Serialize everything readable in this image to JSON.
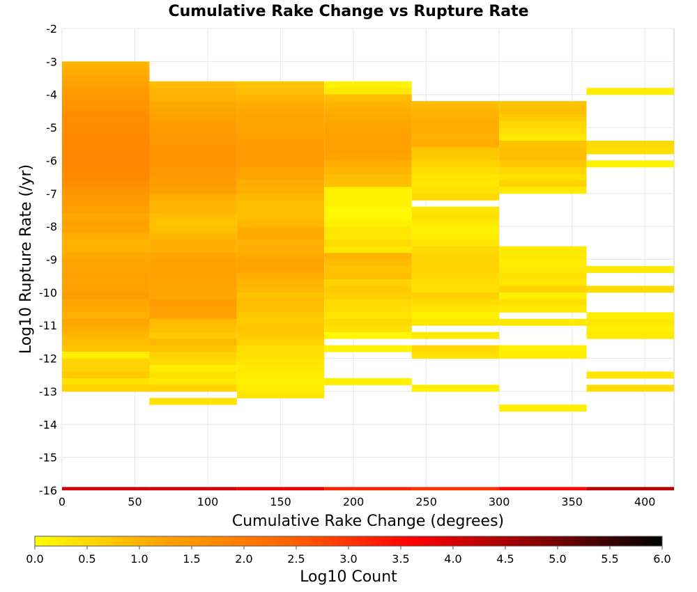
{
  "chart_data": {
    "type": "heatmap",
    "title": "Cumulative Rake Change vs Rupture Rate",
    "xlabel": "Cumulative Rake Change (degrees)",
    "ylabel": "Log10 Rupture Rate (/yr)",
    "xlim": [
      0,
      420
    ],
    "ylim": [
      -16,
      -2
    ],
    "x_ticks": [
      "0",
      "50",
      "100",
      "150",
      "200",
      "250",
      "300",
      "350",
      "400"
    ],
    "y_ticks": [
      "-2",
      "-3",
      "-4",
      "-5",
      "-6",
      "-7",
      "-8",
      "-9",
      "-10",
      "-11",
      "-12",
      "-13",
      "-14",
      "-15",
      "-16"
    ],
    "x_bin_edges": [
      0,
      60,
      120,
      180,
      240,
      300,
      360,
      420
    ],
    "y_bin_width": 0.2,
    "grid": true,
    "colorbar": {
      "label": "Log10 Count",
      "min": 0.0,
      "max": 6.0,
      "ticks": [
        "0.0",
        "0.5",
        "1.0",
        "1.5",
        "2.0",
        "2.5",
        "3.0",
        "3.5",
        "4.0",
        "4.5",
        "5.0",
        "5.5",
        "6.0"
      ],
      "colors": [
        "#ffff00",
        "#ffa500",
        "#ff6600",
        "#ff0000",
        "#8b0000",
        "#000000"
      ]
    },
    "columns": [
      {
        "x_range": [
          0,
          60
        ],
        "top_value": -3.0,
        "log_counts": [
          1.0,
          1.1,
          1.2,
          1.3,
          1.4,
          1.5,
          1.55,
          1.6,
          1.65,
          1.7,
          1.72,
          1.75,
          1.76,
          1.78,
          1.78,
          1.78,
          1.76,
          1.72,
          1.65,
          1.55,
          1.45,
          1.4,
          1.3,
          1.15,
          1.25,
          1.2,
          1.1,
          1.0,
          1.05,
          1.15,
          1.2,
          1.25,
          1.3,
          1.25,
          1.3,
          1.35,
          1.2,
          1.15,
          1.05,
          1.2,
          1.1,
          0.95,
          0.9,
          0.8,
          0.2,
          0.6,
          0.6,
          0.7,
          0.4,
          0.6
        ],
        "bottom_row": 4.0
      },
      {
        "x_range": [
          60,
          120
        ],
        "top_value": -3.6,
        "log_counts": [
          0.9,
          1.0,
          1.05,
          1.15,
          1.2,
          1.25,
          1.35,
          1.4,
          1.45,
          1.5,
          1.52,
          1.55,
          1.55,
          1.5,
          1.4,
          1.35,
          1.3,
          1.1,
          1.0,
          1.0,
          0.9,
          0.8,
          0.85,
          0.95,
          1.1,
          1.05,
          1.2,
          1.25,
          1.3,
          1.3,
          1.25,
          1.2,
          1.2,
          1.35,
          1.3,
          1.25,
          0.9,
          0.85,
          0.7,
          0.95,
          0.8,
          0.6,
          0.5,
          0.25,
          0.4,
          0.3,
          0.6,
          0,
          0.4
        ],
        "bottom_row": 4.0
      },
      {
        "x_range": [
          120,
          180
        ],
        "top_value": -3.6,
        "log_counts": [
          0.8,
          0.9,
          1.0,
          1.1,
          1.15,
          1.2,
          1.2,
          1.25,
          1.3,
          1.35,
          1.4,
          1.4,
          1.35,
          1.25,
          1.2,
          1.1,
          1.05,
          0.95,
          0.9,
          0.85,
          0.9,
          0.95,
          1.1,
          1.15,
          1.05,
          1.1,
          1.15,
          1.2,
          1.25,
          1.1,
          1.0,
          0.95,
          0.8,
          0.9,
          0.85,
          0.75,
          0.7,
          0.8,
          0.7,
          0.6,
          0.45,
          0.4,
          0.35,
          0.3,
          0.25,
          0.2,
          0.25,
          0.35
        ],
        "bottom_row": 3.8
      },
      {
        "x_range": [
          180,
          240
        ],
        "top_value": -3.6,
        "log_counts": [
          0.15,
          0.3,
          0.9,
          1.0,
          1.1,
          1.15,
          1.2,
          1.25,
          1.3,
          1.3,
          1.25,
          1.2,
          1.1,
          1.0,
          0.9,
          0.85,
          0.2,
          0.15,
          0.2,
          0.1,
          0.1,
          0.2,
          0.35,
          0.3,
          0.5,
          0.35,
          1.0,
          0.9,
          0.8,
          0.85,
          0.6,
          0.7,
          0.65,
          0.5,
          0.45,
          0.35,
          0.5,
          0.4,
          0.1,
          0,
          0.15,
          0,
          0,
          0,
          0,
          0.2,
          0
        ],
        "bottom_row": 3.2
      },
      {
        "x_range": [
          240,
          300
        ],
        "top_value": -4.2,
        "log_counts": [
          0.9,
          1.0,
          1.05,
          1.1,
          1.1,
          1.05,
          1.1,
          0.75,
          0.7,
          0.6,
          0.45,
          0.35,
          0.3,
          0.4,
          0.5,
          0,
          0.35,
          0.4,
          0.3,
          0.2,
          0.25,
          0.35,
          0.5,
          0.55,
          0.6,
          0.6,
          0.5,
          0.45,
          0.4,
          0.6,
          0.45,
          0.35,
          0.2,
          0.3,
          0,
          0.3,
          0,
          0.5,
          0.4,
          0,
          0,
          0,
          0,
          0.2
        ],
        "bottom_row": 3.0
      },
      {
        "x_range": [
          300,
          360
        ],
        "top_value": -4.2,
        "log_counts": [
          0.8,
          0.85,
          0.7,
          0.55,
          0.45,
          0.3,
          0.8,
          0.85,
          0.9,
          0.75,
          0.55,
          0.4,
          0.6,
          0.3,
          0,
          0,
          0,
          0,
          0,
          0,
          0,
          0,
          0.3,
          0.3,
          0.25,
          0.3,
          0.4,
          0.3,
          0.6,
          0.2,
          0.4,
          0.3,
          0,
          0.3,
          0,
          0,
          0,
          0.2,
          0.25,
          0,
          0,
          0,
          0,
          0,
          0,
          0,
          0.2
        ],
        "bottom_row": 3.5
      },
      {
        "x_range": [
          360,
          420
        ],
        "top_value": -3.8,
        "log_counts": [
          0.25,
          0,
          0,
          0,
          0,
          0,
          0,
          0,
          0.5,
          0.45,
          0,
          0.15,
          0,
          0,
          0,
          0,
          0,
          0,
          0,
          0,
          0,
          0,
          0,
          0,
          0,
          0,
          0,
          0.3,
          0,
          0,
          0.5,
          0,
          0,
          0,
          0.2,
          0.3,
          0.2,
          0.3,
          0,
          0,
          0,
          0,
          0,
          0.35,
          0,
          0.45
        ],
        "bottom_row": 4.3
      }
    ]
  }
}
